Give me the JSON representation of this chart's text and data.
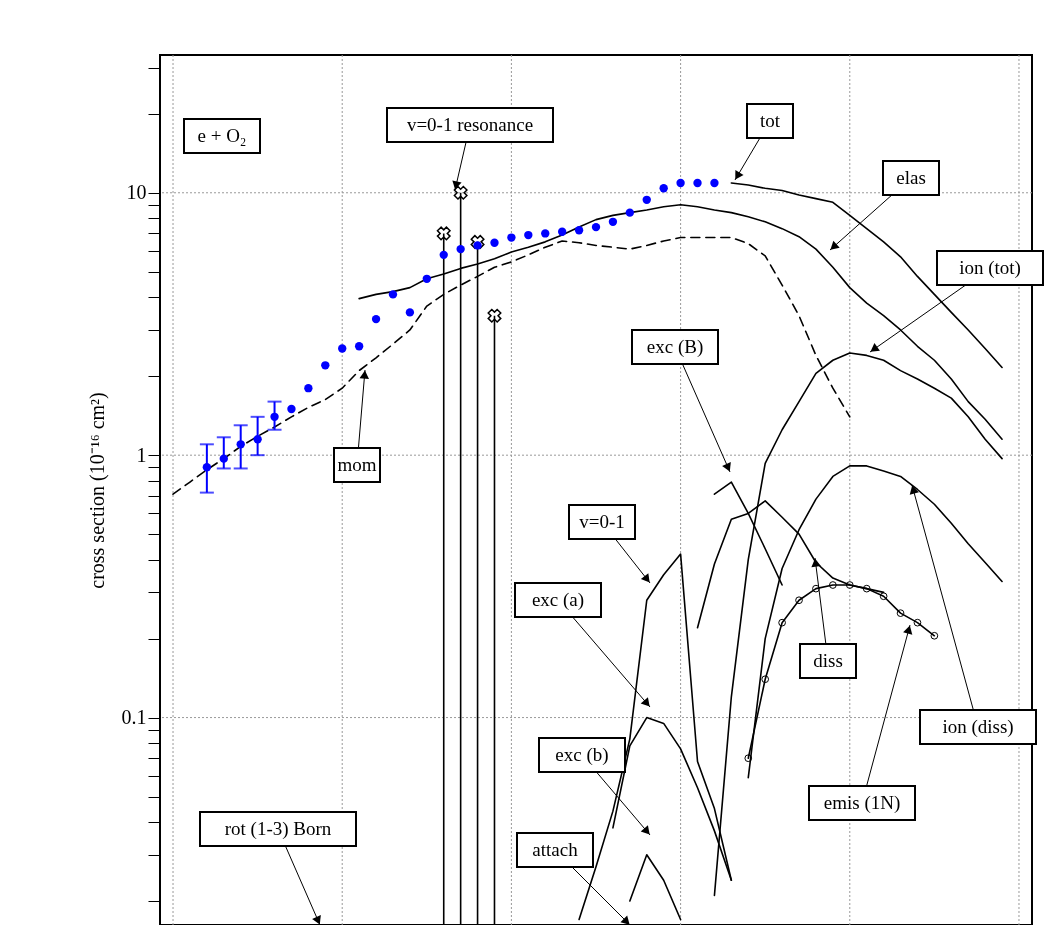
{
  "chart_data": {
    "type": "line",
    "ylabel": "cross section (10⁻¹⁶ cm²)",
    "log": "y",
    "grid": true,
    "tick_labels": "y",
    "line_style": "solid",
    "marker": "none",
    "categories": [
      null,
      null,
      null,
      null,
      null,
      null,
      null,
      null,
      null,
      null,
      null,
      null,
      null,
      null,
      null,
      null,
      null,
      null,
      null,
      null,
      null,
      null,
      null,
      null,
      null,
      null,
      null,
      null,
      null,
      null,
      null,
      null,
      null,
      null,
      null,
      null,
      null,
      null,
      null,
      null,
      null,
      null,
      null,
      null,
      null,
      null,
      null,
      null,
      null,
      null,
      null
    ],
    "ylim": [
      0.0162,
      33.5
    ],
    "yticks": [
      {
        "value": 0.02,
        "label": null
      },
      {
        "value": 0.03,
        "label": null
      },
      {
        "value": 0.04,
        "label": null
      },
      {
        "value": 0.05,
        "label": null
      },
      {
        "value": 0.06,
        "label": null
      },
      {
        "value": 0.07,
        "label": null
      },
      {
        "value": 0.08,
        "label": null
      },
      {
        "value": 0.09,
        "label": null
      },
      0.1,
      {
        "value": 0.2,
        "label": null
      },
      {
        "value": 0.3,
        "label": null
      },
      {
        "value": 0.4,
        "label": null
      },
      {
        "value": 0.5,
        "label": null
      },
      {
        "value": 0.6,
        "label": null
      },
      {
        "value": 0.7,
        "label": null
      },
      {
        "value": 0.8,
        "label": null
      },
      {
        "value": 0.9,
        "label": null
      },
      1,
      {
        "value": 2,
        "label": null
      },
      {
        "value": 3,
        "label": null
      },
      {
        "value": 4,
        "label": null
      },
      {
        "value": 5,
        "label": null
      },
      {
        "value": 6,
        "label": null
      },
      {
        "value": 7,
        "label": null
      },
      {
        "value": 8,
        "label": null
      },
      {
        "value": 9,
        "label": null
      },
      10,
      {
        "value": 20,
        "label": null
      },
      {
        "value": 30,
        "label": null
      }
    ],
    "series": [
      {
        "type": "scatter",
        "marker": "circle",
        "color": "#0000ff",
        "values": [
          null,
          null,
          0.9,
          0.97,
          1.1,
          1.15,
          1.4,
          1.5,
          1.8,
          2.2,
          2.55,
          2.6,
          3.3,
          4.1,
          3.5,
          4.7,
          5.8,
          6.1,
          6.3,
          6.45,
          6.75,
          6.9,
          7.0,
          7.1,
          7.2,
          7.4,
          7.75,
          8.4,
          9.4,
          10.4,
          10.9,
          10.9,
          10.9,
          null,
          null,
          null,
          null,
          null,
          null,
          null,
          null,
          null,
          null,
          null,
          null,
          null,
          null,
          null,
          null,
          null,
          null
        ],
        "errors": [
          null,
          null,
          [
            0.72,
            1.1
          ],
          [
            0.89,
            1.17
          ],
          [
            0.89,
            1.3
          ],
          [
            1.0,
            1.4
          ],
          [
            1.25,
            1.6
          ],
          null,
          null,
          null,
          null,
          null,
          null,
          null,
          null,
          null,
          null,
          null,
          null,
          null,
          null,
          null,
          null,
          null,
          null,
          null,
          null,
          null,
          null,
          null,
          null,
          null,
          null,
          null,
          null,
          null,
          null,
          null,
          null,
          null,
          null,
          null,
          null,
          null,
          null,
          null,
          null,
          null,
          null,
          null,
          null
        ]
      },
      {
        "name": "tot",
        "color": "#000000",
        "values": [
          null,
          null,
          null,
          null,
          null,
          null,
          null,
          null,
          null,
          null,
          null,
          null,
          null,
          null,
          null,
          null,
          null,
          null,
          null,
          null,
          null,
          null,
          null,
          null,
          null,
          null,
          null,
          null,
          null,
          null,
          null,
          null,
          null,
          10.9,
          10.7,
          10.4,
          10.2,
          9.8,
          9.5,
          9.2,
          8.2,
          7.3,
          6.5,
          5.7,
          4.8,
          4.1,
          3.5,
          3.0,
          2.55,
          2.16,
          null
        ]
      },
      {
        "name": "elas",
        "color": "#000000",
        "values": [
          null,
          null,
          null,
          null,
          null,
          null,
          null,
          null,
          null,
          null,
          null,
          3.95,
          4.1,
          4.2,
          4.35,
          4.7,
          4.9,
          5.15,
          5.35,
          5.6,
          5.95,
          6.2,
          6.5,
          6.9,
          7.4,
          7.9,
          8.2,
          8.4,
          8.6,
          8.85,
          9.0,
          8.85,
          8.6,
          8.4,
          8.1,
          7.75,
          7.3,
          6.8,
          6.1,
          5.2,
          4.35,
          3.8,
          3.4,
          3.0,
          2.6,
          2.3,
          1.95,
          1.6,
          1.37,
          1.15,
          null
        ]
      },
      {
        "name": "mom",
        "color": "#000000",
        "line_style": "dashed",
        "values": [
          0.71,
          0.79,
          0.88,
          0.97,
          1.08,
          1.18,
          1.28,
          1.4,
          1.52,
          1.63,
          1.8,
          2.1,
          2.35,
          2.65,
          3.0,
          3.7,
          4.1,
          4.45,
          4.8,
          5.2,
          5.45,
          5.8,
          6.2,
          6.55,
          6.45,
          6.3,
          6.2,
          6.1,
          6.3,
          6.55,
          6.75,
          6.75,
          6.75,
          6.75,
          6.4,
          5.75,
          4.45,
          3.4,
          2.4,
          1.8,
          1.4,
          null,
          null,
          null,
          null,
          null,
          null,
          null,
          null,
          null,
          null
        ]
      },
      {
        "name": "v=0-1 resonance",
        "type": "lollipop",
        "marker": "cross",
        "color": "#000000",
        "values": [
          null,
          null,
          null,
          null,
          null,
          null,
          null,
          null,
          null,
          null,
          null,
          null,
          null,
          null,
          null,
          null,
          7.0,
          10,
          6.5,
          3.4,
          null,
          null,
          null,
          null,
          null,
          null,
          null,
          null,
          null,
          null,
          null,
          null,
          null,
          null,
          null,
          null,
          null,
          null,
          null,
          null,
          null,
          null,
          null,
          null,
          null,
          null,
          null,
          null,
          null,
          null,
          null
        ]
      },
      {
        "name": "ion (tot)",
        "color": "#000000",
        "values": [
          null,
          null,
          null,
          null,
          null,
          null,
          null,
          null,
          null,
          null,
          null,
          null,
          null,
          null,
          null,
          null,
          null,
          null,
          null,
          null,
          null,
          null,
          null,
          null,
          null,
          null,
          null,
          null,
          null,
          null,
          null,
          null,
          0.021,
          0.12,
          0.4,
          0.93,
          1.25,
          1.6,
          2.05,
          2.3,
          2.45,
          2.4,
          2.3,
          2.1,
          1.95,
          1.8,
          1.65,
          1.4,
          1.15,
          0.97,
          null
        ]
      },
      {
        "name": "exc (B)",
        "color": "#000000",
        "values": [
          null,
          null,
          null,
          null,
          null,
          null,
          null,
          null,
          null,
          null,
          null,
          null,
          null,
          null,
          null,
          null,
          null,
          null,
          null,
          null,
          null,
          null,
          null,
          null,
          null,
          null,
          null,
          null,
          null,
          null,
          null,
          null,
          0.71,
          0.79,
          0.6,
          0.44,
          0.32,
          null,
          null,
          null,
          null,
          null,
          null,
          null,
          null,
          null,
          null,
          null,
          null,
          null,
          null
        ]
      },
      {
        "name": "v=0-1",
        "color": "#000000",
        "values": [
          null,
          null,
          null,
          null,
          null,
          null,
          null,
          null,
          null,
          null,
          null,
          null,
          null,
          null,
          null,
          null,
          null,
          null,
          null,
          null,
          null,
          null,
          null,
          null,
          0.017,
          0.027,
          0.044,
          0.083,
          0.28,
          0.35,
          0.42,
          0.068,
          0.045,
          0.024,
          null,
          null,
          null,
          null,
          null,
          null,
          null,
          null,
          null,
          null,
          null,
          null,
          null,
          null,
          null,
          null,
          null
        ]
      },
      {
        "name": "exc (a)",
        "color": "#000000",
        "values": [
          null,
          null,
          null,
          null,
          null,
          null,
          null,
          null,
          null,
          null,
          null,
          null,
          null,
          null,
          null,
          null,
          null,
          null,
          null,
          null,
          null,
          null,
          null,
          null,
          null,
          null,
          0.038,
          0.078,
          0.1,
          0.095,
          0.076,
          0.054,
          0.037,
          0.024,
          null,
          null,
          null,
          null,
          null,
          null,
          null,
          null,
          null,
          null,
          null,
          null,
          null,
          null,
          null,
          null,
          null
        ]
      },
      {
        "name": "diss",
        "color": "#000000",
        "values": [
          null,
          null,
          null,
          null,
          null,
          null,
          null,
          null,
          null,
          null,
          null,
          null,
          null,
          null,
          null,
          null,
          null,
          null,
          null,
          null,
          null,
          null,
          null,
          null,
          null,
          null,
          null,
          null,
          null,
          null,
          null,
          0.22,
          0.385,
          0.57,
          0.6,
          0.67,
          0.58,
          0.5,
          0.39,
          0.34,
          0.32,
          0.31,
          0.3,
          null,
          null,
          null,
          null,
          null,
          null,
          null,
          null
        ]
      },
      {
        "name": "ion (diss)",
        "color": "#000000",
        "values": [
          null,
          null,
          null,
          null,
          null,
          null,
          null,
          null,
          null,
          null,
          null,
          null,
          null,
          null,
          null,
          null,
          null,
          null,
          null,
          null,
          null,
          null,
          null,
          null,
          null,
          null,
          null,
          null,
          null,
          null,
          null,
          null,
          null,
          null,
          0.059,
          0.2,
          0.37,
          0.52,
          0.68,
          0.83,
          0.91,
          0.91,
          0.87,
          0.83,
          0.74,
          0.65,
          0.55,
          0.46,
          0.39,
          0.33,
          null
        ]
      },
      {
        "name": "exc (b)",
        "color": "#000000",
        "values": [
          null,
          null,
          null,
          null,
          null,
          null,
          null,
          null,
          null,
          null,
          null,
          null,
          null,
          null,
          null,
          null,
          null,
          null,
          null,
          null,
          null,
          null,
          null,
          null,
          null,
          null,
          null,
          0.02,
          0.03,
          0.024,
          0.017,
          null,
          null,
          null,
          null,
          null,
          null,
          null,
          null,
          null,
          null,
          null,
          null,
          null,
          null,
          null,
          null,
          null,
          null,
          null,
          null
        ]
      },
      {
        "name": "emis (1N)",
        "marker": "circle",
        "color": "#000000",
        "values": [
          null,
          null,
          null,
          null,
          null,
          null,
          null,
          null,
          null,
          null,
          null,
          null,
          null,
          null,
          null,
          null,
          null,
          null,
          null,
          null,
          null,
          null,
          null,
          null,
          null,
          null,
          null,
          null,
          null,
          null,
          null,
          null,
          null,
          null,
          0.07,
          0.14,
          0.23,
          0.28,
          0.31,
          0.32,
          0.32,
          0.31,
          0.29,
          0.25,
          0.23,
          0.205,
          null,
          null,
          null,
          null,
          null
        ]
      }
    ],
    "annotations": [
      "e + O₂",
      "rot (1-3) Born",
      "attach"
    ]
  }
}
